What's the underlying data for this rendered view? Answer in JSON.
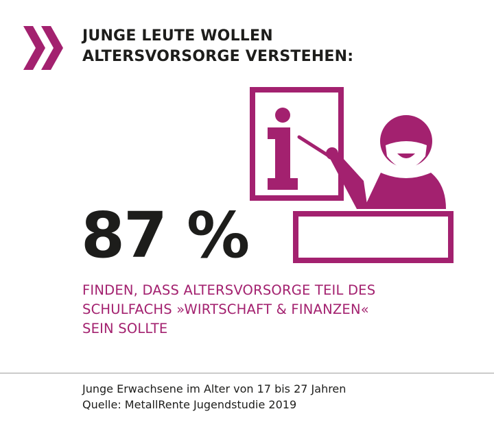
{
  "header": {
    "title_lines": [
      "JUNGE LEUTE WOLLEN",
      "ALTERSVORSORGE VERSTEHEN:"
    ]
  },
  "stat": {
    "value": "87 %",
    "description_lines": [
      "FINDEN, DASS ALTERSVORSORGE TEIL DES",
      "SCHULFACHS »WIRTSCHAFT & FINANZEN«",
      "SEIN SOLLTE"
    ]
  },
  "footer": {
    "lines": [
      "Junge Erwachsene im Alter von 17 bis 27 Jahren",
      "Quelle: MetallRente Jugendstudie 2019"
    ]
  },
  "colors": {
    "accent": "#a3216f",
    "text": "#1d1d1b",
    "divider": "#9d9d9c"
  },
  "icons": [
    "chevron-right-double-icon",
    "teacher-info-board-icon"
  ]
}
